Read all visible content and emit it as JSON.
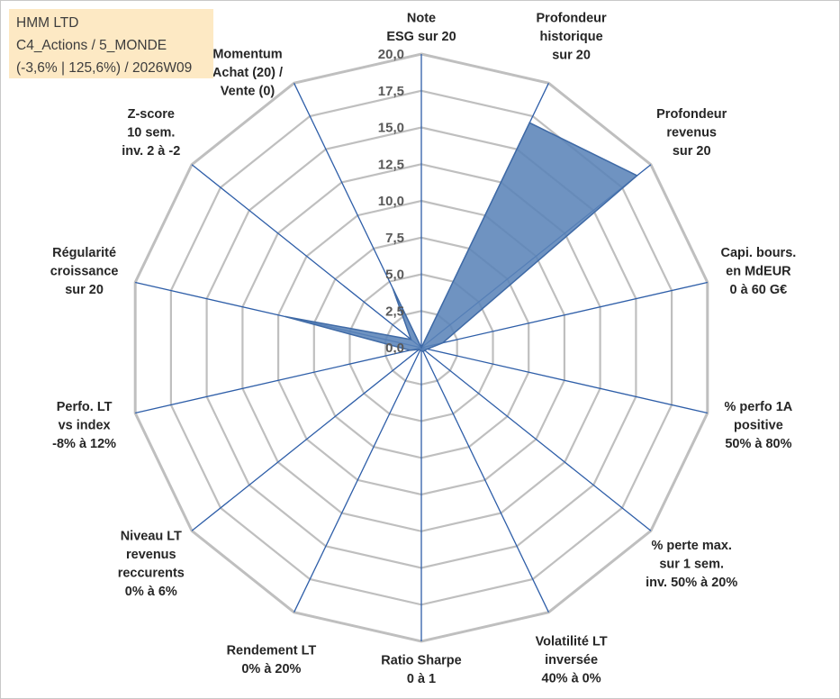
{
  "info_box": {
    "line1": "HMM LTD",
    "line2": "C4_Actions / 5_MONDE",
    "line3": "(-3,6% | 125,6%) / 2026W09"
  },
  "colors": {
    "grid": "#bfbfbf",
    "spokes": "#2e5ea8",
    "fill": "#5b84b8",
    "fill_edge": "#3f6aa6",
    "info_bg": "#fde9c4"
  },
  "chart_data": {
    "type": "radar",
    "range": [
      0,
      20
    ],
    "ticks": [
      "0,0",
      "2,5",
      "5,0",
      "7,5",
      "10,0",
      "12,5",
      "15,0",
      "17,5",
      "20,0"
    ],
    "grid": true,
    "axes": [
      [
        "Note",
        "ESG sur 20"
      ],
      [
        "Profondeur",
        "historique",
        "sur 20"
      ],
      [
        "Profondeur",
        "revenus",
        "sur 20"
      ],
      [
        "Capi. bours.",
        "en MdEUR",
        "0 à 60 G€"
      ],
      [
        "% perfo 1A",
        "positive",
        "50% à 80%"
      ],
      [
        "% perte max.",
        "sur 1 sem.",
        "inv. 50% à 20%"
      ],
      [
        "Volatilité LT",
        "inversée",
        "40% à 0%"
      ],
      [
        "Ratio Sharpe",
        "0 à 1"
      ],
      [
        "Rendement LT",
        "0% à 20%"
      ],
      [
        "Niveau LT",
        "revenus",
        "reccurents",
        "0% à 6%"
      ],
      [
        "Perfo. LT",
        "vs index",
        "-8% à 12%"
      ],
      [
        "Régularité",
        "croissance",
        "sur 20"
      ],
      [
        "Z-score",
        "10 sem.",
        "inv. 2 à -2"
      ],
      [
        "Momentum",
        "Achat (20) /",
        "Vente (0)"
      ]
    ],
    "values": [
      0,
      17.0,
      18.8,
      1.5,
      0.4,
      0.3,
      0.3,
      0.2,
      0.2,
      0.2,
      0.8,
      9.5,
      0.9,
      4.5
    ]
  }
}
